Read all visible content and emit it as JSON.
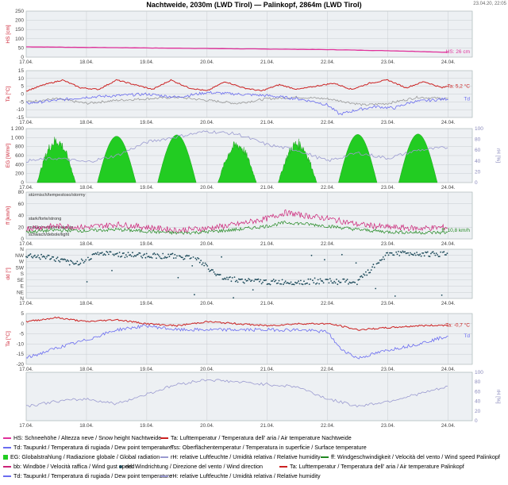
{
  "header": {
    "title": "Nachtweide, 2030m (LWD Tirol) — Palinkopf, 2864m (LWD Tirol)",
    "timestamp": "23.04.20, 22:05"
  },
  "x_ticks": [
    "17.04.",
    "18.04.",
    "19.04.",
    "20.04.",
    "21.04.",
    "22.04.",
    "23.04.",
    "24.04."
  ],
  "colors": {
    "snow": "#e0309a",
    "temp": "#cc2222",
    "dew": "#6a6cf0",
    "surface": "#999999",
    "radiation": "#22cc22",
    "humidity": "#9a9ad0",
    "wind": "#228822",
    "gust": "#cc2277",
    "direction": "#1c4a5a",
    "panel_bg": "#edf0f3"
  },
  "chart_data": [
    {
      "type": "line",
      "panel": "snow",
      "ylabel": "HS [cm]",
      "ylim": [
        0,
        250
      ],
      "yticks": [
        "0",
        "50",
        "100",
        "150",
        "200",
        "250"
      ],
      "grid": true,
      "value_label": "HS: 26 cm",
      "series": [
        {
          "key": "HS",
          "x_days": [
            0,
            1,
            2,
            3,
            4,
            5,
            5.5,
            6,
            6.5,
            7
          ],
          "values": [
            56,
            53,
            50,
            47,
            44,
            41,
            38,
            35,
            31,
            26
          ]
        }
      ]
    },
    {
      "type": "line",
      "panel": "temperature",
      "ylabel": "Ta [°C]",
      "ylim": [
        -15,
        15
      ],
      "yticks": [
        "-15",
        "-10",
        "-5",
        "0",
        "5",
        "10",
        "15"
      ],
      "grid": true,
      "value_label_ta": "Ta: 5,2 °C",
      "value_label_td": "Td",
      "series": [
        {
          "key": "Ta",
          "x_days": [
            0,
            0.3,
            0.6,
            0.9,
            1.2,
            1.5,
            1.8,
            2.1,
            2.4,
            2.7,
            3.0,
            3.3,
            3.6,
            3.9,
            4.2,
            4.5,
            4.8,
            5.1,
            5.4,
            5.7,
            6.0,
            6.3,
            6.6,
            6.9,
            7.0
          ],
          "values": [
            2,
            6,
            9,
            4,
            3,
            9,
            6,
            3,
            9,
            4,
            2,
            8,
            4,
            2,
            6,
            3,
            5,
            7,
            3,
            7,
            9,
            4,
            8,
            4,
            5.2
          ]
        },
        {
          "key": "Td",
          "x_days": [
            0,
            0.5,
            1.0,
            1.5,
            2.0,
            2.5,
            3.0,
            3.5,
            4.0,
            4.5,
            4.8,
            5.0,
            5.2,
            5.5,
            5.8,
            6.1,
            6.4,
            6.7,
            7.0
          ],
          "values": [
            -6,
            -4,
            -2,
            -1,
            0,
            -2,
            1,
            0,
            -1,
            -3,
            -5,
            -7,
            -13,
            -10,
            -8,
            -9,
            -5,
            -4,
            -3
          ]
        },
        {
          "key": "Tss",
          "x_days": [
            0,
            0.5,
            1.0,
            1.5,
            2.0,
            2.5,
            3.0,
            3.5,
            4.0,
            4.5,
            5.0,
            5.3,
            5.6,
            6.0,
            6.5,
            7.0
          ],
          "values": [
            -5,
            -3,
            -6,
            -4,
            -3,
            -2,
            -4,
            -6,
            -3,
            -2,
            -3,
            -5,
            -7,
            -6,
            -2,
            -3
          ]
        }
      ]
    },
    {
      "type": "area",
      "panel": "radiation",
      "ylabel": "EG [W/m²]",
      "ylim": [
        0,
        1200
      ],
      "yticks": [
        "0",
        "200",
        "400",
        "600",
        "800",
        "1 000",
        "1 200"
      ],
      "y2label": "rH [%]",
      "y2lim": [
        0,
        100
      ],
      "y2ticks": [
        "0",
        "20",
        "40",
        "60",
        "80",
        "100"
      ],
      "grid": true,
      "series": [
        {
          "key": "EG_day_peaks",
          "x_days": [
            0.5,
            1.5,
            2.5,
            3.5,
            4.5,
            5.5,
            6.5
          ],
          "values": [
            1050,
            1030,
            1060,
            950,
            980,
            1070,
            1080
          ]
        },
        {
          "key": "rH",
          "x_days": [
            0,
            0.5,
            1.0,
            1.5,
            2.0,
            2.5,
            3.0,
            3.5,
            4.0,
            4.5,
            5.0,
            5.5,
            6.0,
            6.5,
            7.0
          ],
          "values": [
            40,
            45,
            38,
            50,
            75,
            85,
            95,
            90,
            70,
            60,
            40,
            55,
            45,
            60,
            65
          ]
        }
      ]
    },
    {
      "type": "line",
      "panel": "wind",
      "ylabel": "ff [km/h]",
      "ylim": [
        0,
        80
      ],
      "yticks": [
        "0",
        "20",
        "40",
        "60",
        "80"
      ],
      "grid": true,
      "band_labels": [
        "stürmisch/tempestoso/stormy",
        "stark/forte/strong",
        "mäßig/medio/moderate",
        "schwach/debole/light"
      ],
      "value_label": "ff: 10,8 km/h",
      "series": [
        {
          "key": "bb",
          "x_days": [
            0,
            0.5,
            1.0,
            1.5,
            2.0,
            2.5,
            3.0,
            3.5,
            4.0,
            4.3,
            4.6,
            5.0,
            5.5,
            6.0,
            6.5,
            7.0
          ],
          "values": [
            18,
            22,
            20,
            25,
            20,
            15,
            18,
            25,
            35,
            45,
            40,
            35,
            25,
            20,
            18,
            20
          ]
        },
        {
          "key": "ff",
          "x_days": [
            0,
            0.5,
            1.0,
            1.5,
            2.0,
            2.5,
            3.0,
            3.5,
            4.0,
            4.3,
            4.6,
            5.0,
            5.5,
            6.0,
            6.5,
            7.0
          ],
          "values": [
            12,
            15,
            14,
            16,
            13,
            10,
            12,
            16,
            22,
            28,
            26,
            22,
            16,
            12,
            11,
            10.8
          ]
        }
      ]
    },
    {
      "type": "scatter",
      "panel": "direction",
      "ylabel": "dd [°]",
      "yticks": [
        "N",
        "NW",
        "W",
        "SW",
        "S",
        "SE",
        "E",
        "NE",
        "N"
      ],
      "grid": true,
      "series": [
        {
          "key": "dd",
          "x_days": [
            0,
            0.4,
            0.8,
            1.2,
            1.6,
            2.0,
            2.4,
            2.8,
            3.2,
            3.6,
            4.0,
            4.5,
            5.0,
            5.5,
            6.0,
            6.5,
            7.0
          ],
          "values": [
            315,
            300,
            250,
            330,
            320,
            315,
            310,
            300,
            160,
            130,
            120,
            120,
            125,
            120,
            330,
            330,
            320
          ]
        }
      ]
    },
    {
      "type": "line",
      "panel": "temperature2",
      "ylabel": "Ta [°C]",
      "ylim": [
        -20,
        5
      ],
      "yticks": [
        "-20",
        "-15",
        "-10",
        "-5",
        "0",
        "5"
      ],
      "grid": true,
      "value_label_ta": "Ta: -0,7 °C",
      "value_label_td": "Td",
      "series": [
        {
          "key": "Ta2",
          "x_days": [
            0,
            0.5,
            1.0,
            1.5,
            2.0,
            2.5,
            3.0,
            3.5,
            4.0,
            4.5,
            5.0,
            5.2,
            5.5,
            6.0,
            6.5,
            7.0
          ],
          "values": [
            1,
            3,
            1,
            2,
            0,
            -1,
            1,
            0,
            -1,
            0,
            0,
            -1,
            -3,
            -2,
            -1,
            -0.7
          ]
        },
        {
          "key": "Td2",
          "x_days": [
            0,
            0.5,
            1.0,
            1.5,
            2.0,
            2.5,
            3.0,
            3.5,
            4.0,
            4.5,
            5.0,
            5.2,
            5.5,
            6.0,
            6.5,
            7.0
          ],
          "values": [
            -17,
            -12,
            -8,
            -3,
            -1,
            -3,
            -3,
            -3,
            -3,
            -3,
            -4,
            -12,
            -17,
            -13,
            -10,
            -6
          ]
        }
      ]
    },
    {
      "type": "line",
      "panel": "humidity2",
      "y2label": "rH [%]",
      "y2lim": [
        0,
        100
      ],
      "y2ticks": [
        "0",
        "20",
        "40",
        "60",
        "80",
        "100"
      ],
      "grid": true,
      "series": [
        {
          "key": "rH2",
          "x_days": [
            0,
            0.5,
            1.0,
            1.5,
            2.0,
            2.5,
            3.0,
            3.5,
            4.0,
            4.5,
            5.0,
            5.5,
            6.0,
            6.5,
            7.0
          ],
          "values": [
            30,
            40,
            45,
            35,
            55,
            75,
            85,
            80,
            75,
            70,
            45,
            30,
            40,
            55,
            70
          ]
        }
      ]
    }
  ],
  "legend": {
    "hs": "HS: Schneehöhe / Altezza neve / Snow height  Nachtweide",
    "ta": "Ta: Lufttemperatur / Temperatura dell' aria / Air temperature  Nachtweide",
    "td": "Td: Taupunkt / Temperatura di rugiada / Dew point temperature",
    "tss": "Tss: Oberflächentemperatur / Temperatura in superficie / Surface temperature",
    "eg": "EG: Globalstrahlung / Radiazione globale / Global radiation",
    "rh": "rH: relative Luftfeuchte / Umidità relativa / Relative humidity",
    "ff": "ff: Windgeschwindigkeit / Velocità del vento / Wind speed  Palinkopf",
    "bb": "bb: Windböe / Velocità raffica / Wind gust speed",
    "dd": "dd: Windrichtung / Direzione del vento / Wind direction",
    "ta2": "Ta: Lufttemperatur / Temperatura dell' aria / Air temperature  Palinkopf",
    "td2": "Td: Taupunkt / Temperatura di rugiada / Dew point temperature",
    "rh2": "rH: relative Luftfeuchte / Umidità relativa / Relative humidity"
  }
}
